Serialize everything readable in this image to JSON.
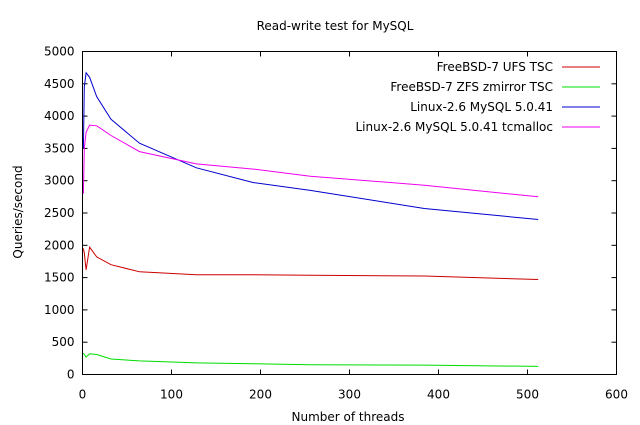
{
  "chart_data": {
    "type": "line",
    "title": "Read-write test for MySQL",
    "xlabel": "Number of threads",
    "ylabel": "Queries/second",
    "xlim": [
      0,
      600
    ],
    "ylim": [
      0,
      5000
    ],
    "xticks": [
      0,
      100,
      200,
      300,
      400,
      500,
      600
    ],
    "yticks": [
      0,
      500,
      1000,
      1500,
      2000,
      2500,
      3000,
      3500,
      4000,
      4500,
      5000
    ],
    "grid": false,
    "legend": "top-right",
    "series": [
      {
        "name": "FreeBSD-7 UFS TSC",
        "color": "#cc0000",
        "x": [
          1,
          2,
          4,
          8,
          16,
          32,
          64,
          128,
          192,
          256,
          384,
          512
        ],
        "y": [
          1950,
          1880,
          1620,
          1970,
          1820,
          1700,
          1590,
          1545,
          1545,
          1535,
          1525,
          1470
        ]
      },
      {
        "name": "FreeBSD-7 ZFS zmirror TSC",
        "color": "#00dd00",
        "x": [
          1,
          2,
          4,
          8,
          16,
          32,
          64,
          128,
          192,
          256,
          384,
          512
        ],
        "y": [
          330,
          310,
          270,
          320,
          310,
          240,
          210,
          180,
          165,
          150,
          145,
          125
        ]
      },
      {
        "name": "Linux-2.6 MySQL 5.0.41",
        "color": "#0000cc",
        "x": [
          1,
          2,
          4,
          8,
          16,
          32,
          64,
          128,
          192,
          256,
          384,
          512
        ],
        "y": [
          3500,
          4450,
          4670,
          4600,
          4300,
          3950,
          3580,
          3200,
          2970,
          2850,
          2570,
          2400
        ]
      },
      {
        "name": "Linux-2.6 MySQL 5.0.41 tcmalloc",
        "color": "#ee00ee",
        "x": [
          1,
          2,
          4,
          8,
          16,
          32,
          64,
          128,
          192,
          256,
          384,
          512
        ],
        "y": [
          2800,
          3500,
          3750,
          3860,
          3850,
          3700,
          3450,
          3260,
          3180,
          3070,
          2930,
          2750
        ]
      }
    ]
  }
}
